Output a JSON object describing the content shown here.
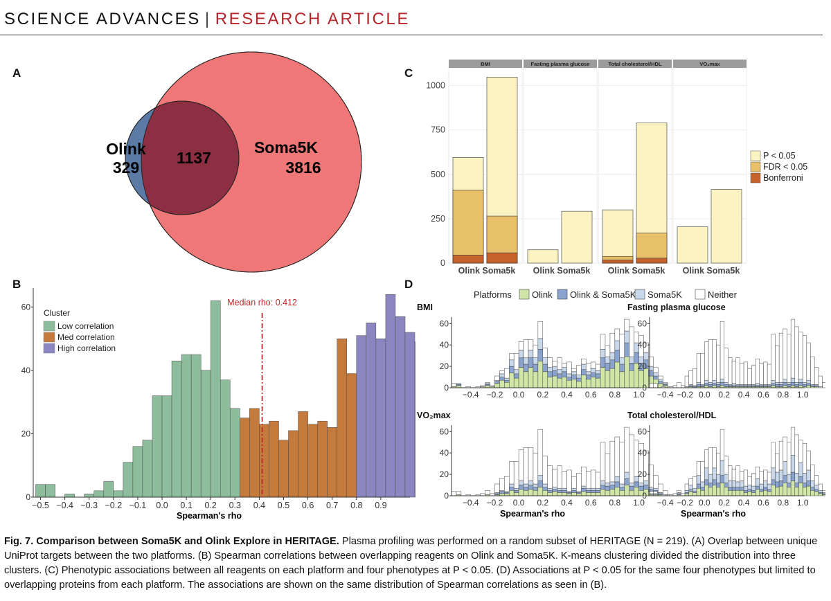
{
  "header": {
    "journal": "SCIENCE ADVANCES",
    "separator": "|",
    "article_type": "RESEARCH ARTICLE"
  },
  "panels": {
    "a": "A",
    "b": "B",
    "c": "C",
    "d": "D"
  },
  "venn": {
    "left_label": "Olink",
    "left_only": "329",
    "overlap": "1137",
    "right_label": "Soma5K",
    "right_only": "3816",
    "colors": {
      "left": "#5b7aa6",
      "right": "#ef7777",
      "overlap": "#8c2f42"
    }
  },
  "chart_data": [
    {
      "panel": "B",
      "type": "bar",
      "title": "",
      "xlabel": "Spearman's rho",
      "ylabel": "",
      "xlim": [
        -0.53,
        1.02
      ],
      "ylim": [
        0,
        66
      ],
      "xticks": [
        -0.5,
        -0.4,
        -0.3,
        -0.2,
        -0.1,
        0.0,
        0.1,
        0.2,
        0.3,
        0.4,
        0.5,
        0.6,
        0.7,
        0.8,
        0.9
      ],
      "xtick_labels": [
        "−0.5",
        "−0.4",
        "−0.3",
        "−0.2",
        "−0.1",
        "0.0",
        "0.1",
        "0.2",
        "0.3",
        "0.4",
        "0.5",
        "0.6",
        "0.7",
        "0.8",
        "0.9"
      ],
      "yticks": [
        0,
        20,
        40,
        60
      ],
      "bin_start": -0.52,
      "bin_width": 0.04,
      "values": [
        4,
        4,
        0,
        1,
        0,
        1,
        2,
        5,
        2,
        11,
        16,
        18,
        32,
        32,
        43,
        45,
        45,
        40,
        62,
        37,
        28,
        25,
        28,
        23,
        24,
        18,
        21,
        27,
        23,
        24,
        22,
        50,
        39,
        51,
        55,
        50,
        64,
        57,
        52,
        49,
        42,
        29,
        19,
        11,
        5,
        1
      ],
      "cluster_index": [
        0,
        0,
        0,
        0,
        0,
        0,
        0,
        0,
        0,
        0,
        0,
        0,
        0,
        0,
        0,
        0,
        0,
        0,
        0,
        0,
        0,
        1,
        1,
        1,
        1,
        1,
        1,
        1,
        1,
        1,
        1,
        1,
        1,
        2,
        2,
        2,
        2,
        2,
        2,
        2,
        2,
        2,
        2,
        2,
        2,
        2
      ],
      "legend_title": "Cluster",
      "series": [
        {
          "name": "Low correlation",
          "color": "#8dbd9c"
        },
        {
          "name": "Med correlation",
          "color": "#c47a3c"
        },
        {
          "name": "High correlation",
          "color": "#8c86c0"
        }
      ],
      "median": {
        "value": 0.412,
        "label": "Median rho: 0.412",
        "color": "#c0282b"
      },
      "legend_position": "top-left"
    },
    {
      "panel": "C",
      "type": "bar",
      "facets": [
        "BMI",
        "Fasting plasma glucose",
        "Total cholesterol/HDL",
        "VO₂max"
      ],
      "categories": [
        "Olink",
        "Soma5k"
      ],
      "ylim": [
        0,
        1100
      ],
      "yticks": [
        0,
        250,
        500,
        750,
        1000
      ],
      "series": [
        {
          "name": "P < 0.05",
          "color": "#fbf4c2",
          "values": [
            [
              595,
              1048
            ],
            [
              75,
              292
            ],
            [
              300,
              790
            ],
            [
              205,
              415
            ]
          ]
        },
        {
          "name": "FDR < 0.05",
          "color": "#e8c06a",
          "values": [
            [
              412,
              265
            ],
            [
              0,
              0
            ],
            [
              38,
              170
            ],
            [
              0,
              0
            ]
          ]
        },
        {
          "name": "Bonferroni",
          "color": "#c6622b",
          "values": [
            [
              45,
              58
            ],
            [
              0,
              0
            ],
            [
              18,
              28
            ],
            [
              0,
              0
            ]
          ]
        }
      ],
      "legend_position": "right"
    },
    {
      "panel": "D",
      "type": "bar",
      "legend_title": "Platforms",
      "series": [
        {
          "name": "Olink",
          "color": "#cfe6a7"
        },
        {
          "name": "Olink & Soma5K",
          "color": "#8aa4cf"
        },
        {
          "name": "Soma5K",
          "color": "#c9d8ea"
        },
        {
          "name": "Neither",
          "color": "#ffffff"
        }
      ],
      "xlabel": "Spearman's rho",
      "xlim": [
        -0.56,
        1.02
      ],
      "ylim": [
        0,
        66
      ],
      "xticks": [
        -0.4,
        -0.2,
        0.0,
        0.2,
        0.4,
        0.6,
        0.8,
        1.0
      ],
      "xtick_labels": [
        "−0.4",
        "−0.2",
        "0.0",
        "0.2",
        "0.4",
        "0.6",
        "0.8",
        "1.0"
      ],
      "yticks": [
        0,
        20,
        40,
        60
      ],
      "bin_start": -0.56,
      "bin_width": 0.04,
      "totals": [
        4,
        4,
        0,
        1,
        0,
        1,
        2,
        5,
        2,
        11,
        16,
        18,
        32,
        32,
        43,
        45,
        45,
        40,
        62,
        37,
        28,
        25,
        28,
        23,
        24,
        18,
        21,
        27,
        23,
        24,
        22,
        50,
        39,
        51,
        55,
        50,
        64,
        57,
        52,
        49,
        42,
        29,
        19,
        11,
        5,
        1
      ],
      "subplots": [
        {
          "title": "BMI",
          "share_olink": 0.36,
          "share_both": 0.16,
          "share_soma": 0.14
        },
        {
          "title": "Fasting plasma glucose",
          "share_olink": 0.03,
          "share_both": 0.04,
          "share_soma": 0.05
        },
        {
          "title": "VO₂max",
          "share_olink": 0.12,
          "share_both": 0.08,
          "share_soma": 0.07
        },
        {
          "title": "Total cholesterol/HDL",
          "share_olink": 0.18,
          "share_both": 0.1,
          "share_soma": 0.2
        }
      ]
    }
  ],
  "caption": {
    "title": "Fig. 7. Comparison between Soma5K and Olink Explore in HERITAGE.",
    "text": " Plasma profiling was performed on a random subset of HERITAGE (N = 219). (A) Overlap between unique UniProt targets between the two platforms. (B) Spearman correlations between overlapping reagents on Olink and Soma5K. K-means clustering divided the distribution into three clusters. (C) Phenotypic associations between all reagents on each platform and four phenotypes at P < 0.05. (D) Associations at P < 0.05 for the same four phenotypes but limited to overlapping proteins from each platform. The associations are shown on the same distribution of Spearman correlations as seen in (B)."
  }
}
